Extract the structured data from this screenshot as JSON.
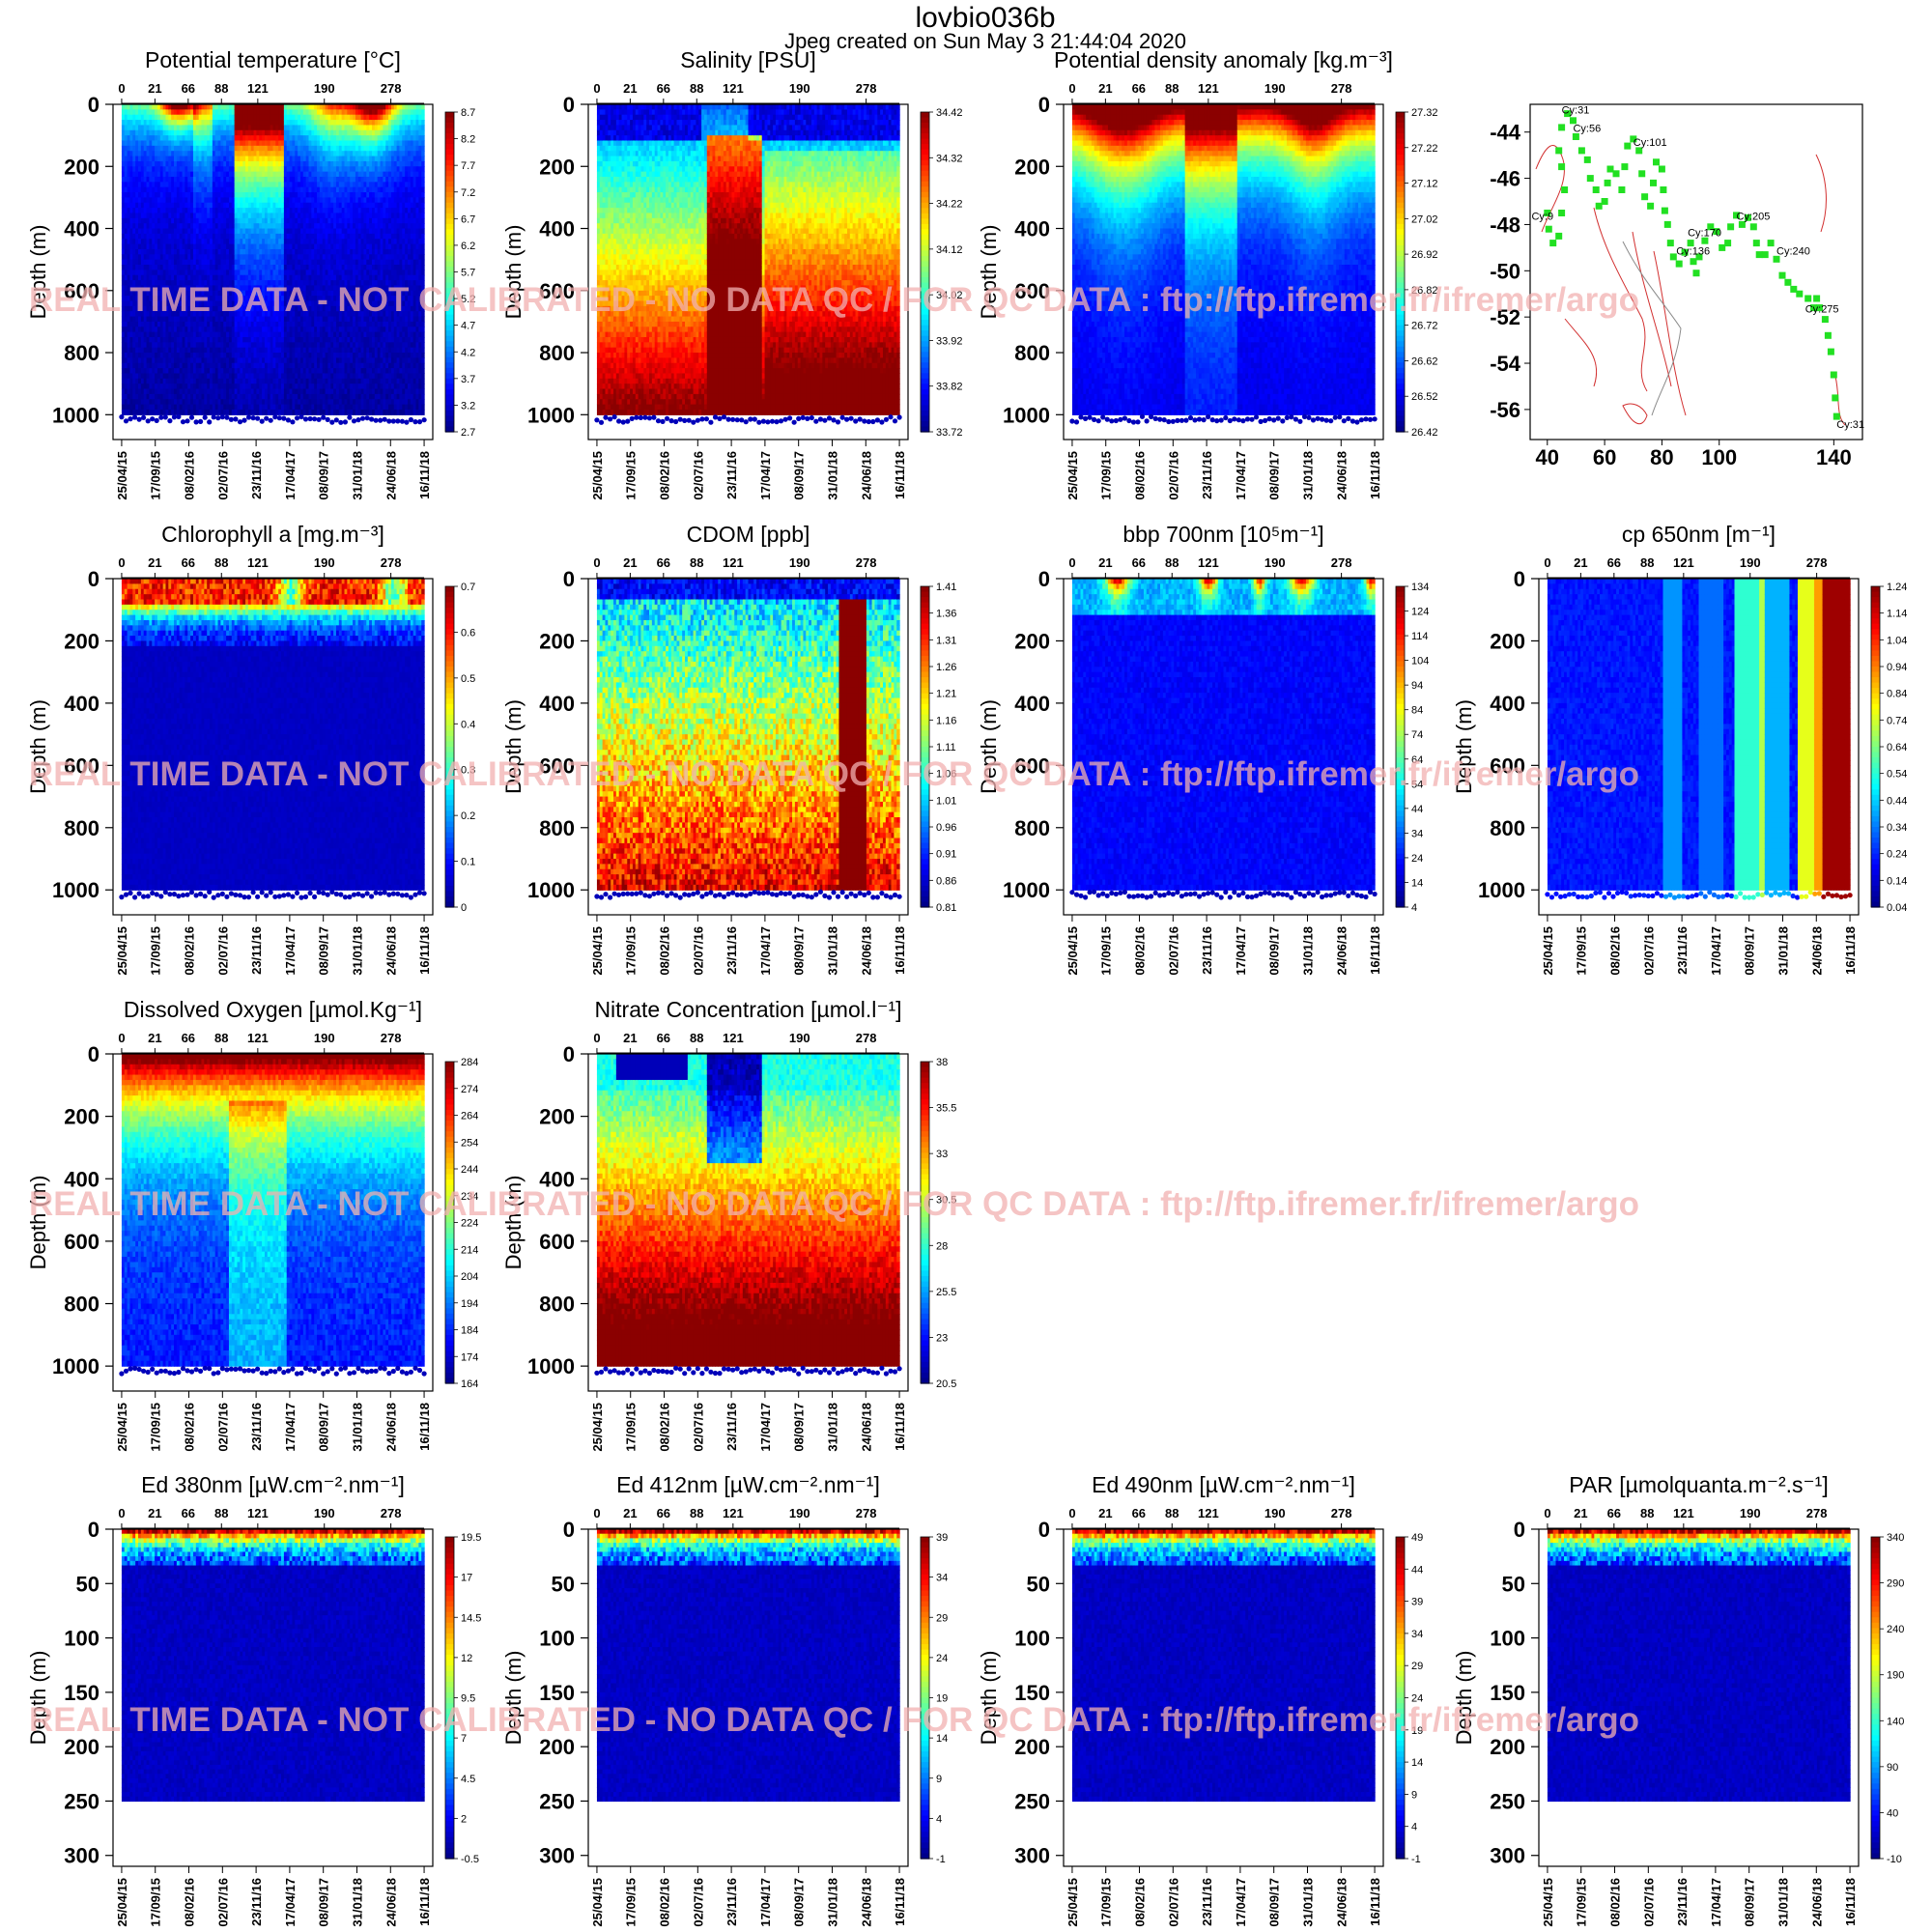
{
  "header": {
    "title": "lovbio036b",
    "subtitle": "Jpeg created on  Sun May  3 21:44:04 2020"
  },
  "watermark": "REAL TIME DATA - NOT CALIBRATED - NO DATA QC  /  FOR QC DATA : ftp://ftp.ifremer.fr/ifremer/argo",
  "colormap": [
    "#00008b",
    "#0000ff",
    "#0080ff",
    "#00ffff",
    "#80ff80",
    "#ffff00",
    "#ff8000",
    "#ff0000",
    "#8b0000"
  ],
  "chart_data": [
    {
      "type": "heatmap",
      "id": "temp",
      "title": "Potential temperature [°C]",
      "ylabel": "Depth (m)",
      "top_axis_ticks": [
        "0",
        "21",
        "66",
        "88",
        "121",
        "190",
        "278"
      ],
      "date_ticks": [
        "25/04/15",
        "17/09/15",
        "08/02/16",
        "02/07/16",
        "23/11/16",
        "17/04/17",
        "08/09/17",
        "31/01/18",
        "24/06/18",
        "16/11/18"
      ],
      "depth_ticks": [
        "0",
        "200",
        "400",
        "600",
        "800",
        "1000"
      ],
      "colorbar_ticks": [
        "8.7",
        "8.2",
        "7.7",
        "7.2",
        "6.7",
        "6.2",
        "5.7",
        "5.2",
        "4.7",
        "4.2",
        "3.7",
        "3.2",
        "2.7"
      ],
      "ylim": [
        1080,
        0
      ],
      "max_depth": 1000,
      "pattern": "temp"
    },
    {
      "type": "heatmap",
      "id": "sal",
      "title": "Salinity [PSU]",
      "ylabel": "Depth (m)",
      "top_axis_ticks": [
        "0",
        "21",
        "66",
        "88",
        "121",
        "190",
        "278"
      ],
      "date_ticks": [
        "25/04/15",
        "17/09/15",
        "08/02/16",
        "02/07/16",
        "23/11/16",
        "17/04/17",
        "08/09/17",
        "31/01/18",
        "24/06/18",
        "16/11/18"
      ],
      "depth_ticks": [
        "0",
        "200",
        "400",
        "600",
        "800",
        "1000"
      ],
      "colorbar_ticks": [
        "34.42",
        "34.32",
        "34.22",
        "34.12",
        "34.02",
        "33.92",
        "33.82",
        "33.72"
      ],
      "ylim": [
        1080,
        0
      ],
      "max_depth": 1000,
      "pattern": "sal"
    },
    {
      "type": "heatmap",
      "id": "dens",
      "title": "Potential density anomaly [kg.m⁻³]",
      "ylabel": "Depth (m)",
      "top_axis_ticks": [
        "0",
        "21",
        "66",
        "88",
        "121",
        "190",
        "278"
      ],
      "date_ticks": [
        "25/04/15",
        "17/09/15",
        "08/02/16",
        "02/07/16",
        "23/11/16",
        "17/04/17",
        "08/09/17",
        "31/01/18",
        "24/06/18",
        "16/11/18"
      ],
      "depth_ticks": [
        "0",
        "200",
        "400",
        "600",
        "800",
        "1000"
      ],
      "colorbar_ticks": [
        "27.32",
        "27.22",
        "27.12",
        "27.02",
        "26.92",
        "26.82",
        "26.72",
        "26.62",
        "26.52",
        "26.42"
      ],
      "ylim": [
        1080,
        0
      ],
      "max_depth": 1000,
      "pattern": "dens"
    },
    {
      "type": "scatter",
      "id": "map",
      "x_ticks": [
        "40",
        "60",
        "80",
        "100",
        "140"
      ],
      "y_ticks": [
        "-44",
        "-46",
        "-48",
        "-50",
        "-52",
        "-54",
        "-56"
      ],
      "xlim": [
        34,
        150
      ],
      "ylim": [
        -57.3,
        -42.8
      ],
      "cycle_labels": [
        {
          "label": "Cy:31",
          "lon": 45,
          "lat": -43.2
        },
        {
          "label": "Cy:56",
          "lon": 49,
          "lat": -44.0
        },
        {
          "label": "Cy:101",
          "lon": 70,
          "lat": -44.6
        },
        {
          "label": "Cy:9",
          "lon": 34.5,
          "lat": -47.8
        },
        {
          "label": "Cy:170",
          "lon": 89,
          "lat": -48.5
        },
        {
          "label": "Cy:205",
          "lon": 106,
          "lat": -47.8
        },
        {
          "label": "Cy:136",
          "lon": 85,
          "lat": -49.3
        },
        {
          "label": "Cy:240",
          "lon": 120,
          "lat": -49.3
        },
        {
          "label": "Cy:275",
          "lon": 130,
          "lat": -51.8
        },
        {
          "label": "Cy:31",
          "lon": 141,
          "lat": -56.8
        }
      ],
      "track": [
        [
          40,
          -47.5
        ],
        [
          40.5,
          -48.2
        ],
        [
          42,
          -48.8
        ],
        [
          44,
          -48.5
        ],
        [
          45,
          -47.5
        ],
        [
          46,
          -46.5
        ],
        [
          45,
          -45.5
        ],
        [
          44,
          -44.8
        ],
        [
          45,
          -43.8
        ],
        [
          47,
          -43.2
        ],
        [
          49,
          -43.5
        ],
        [
          50,
          -44.2
        ],
        [
          52,
          -44.8
        ],
        [
          54,
          -45.2
        ],
        [
          55,
          -46.0
        ],
        [
          57,
          -46.5
        ],
        [
          58,
          -47.2
        ],
        [
          60,
          -47.0
        ],
        [
          61,
          -46.2
        ],
        [
          62,
          -45.6
        ],
        [
          64,
          -45.8
        ],
        [
          66,
          -46.5
        ],
        [
          67,
          -45.5
        ],
        [
          68,
          -44.6
        ],
        [
          70,
          -44.3
        ],
        [
          72,
          -44.8
        ],
        [
          73,
          -45.8
        ],
        [
          74,
          -46.8
        ],
        [
          76,
          -47.2
        ],
        [
          77,
          -46.2
        ],
        [
          78,
          -45.3
        ],
        [
          80,
          -45.6
        ],
        [
          80.5,
          -46.5
        ],
        [
          81,
          -47.4
        ],
        [
          82,
          -48.0
        ],
        [
          83,
          -48.8
        ],
        [
          84,
          -49.4
        ],
        [
          86,
          -49.7
        ],
        [
          88,
          -49.2
        ],
        [
          90,
          -48.8
        ],
        [
          91,
          -49.6
        ],
        [
          92,
          -50.1
        ],
        [
          93,
          -49.4
        ],
        [
          95,
          -48.7
        ],
        [
          97,
          -48.1
        ],
        [
          99,
          -48.3
        ],
        [
          101,
          -49.0
        ],
        [
          103,
          -48.8
        ],
        [
          104,
          -48.1
        ],
        [
          106,
          -47.6
        ],
        [
          108,
          -48.0
        ],
        [
          110,
          -47.7
        ],
        [
          112,
          -48.1
        ],
        [
          113,
          -48.8
        ],
        [
          114,
          -49.3
        ],
        [
          116,
          -49.3
        ],
        [
          118,
          -48.8
        ],
        [
          120,
          -49.5
        ],
        [
          122,
          -50.2
        ],
        [
          124,
          -50.5
        ],
        [
          126,
          -50.8
        ],
        [
          128,
          -51.0
        ],
        [
          131,
          -51.2
        ],
        [
          133,
          -51.6
        ],
        [
          134,
          -51.2
        ],
        [
          135,
          -51.6
        ],
        [
          137,
          -52.1
        ],
        [
          138,
          -52.8
        ],
        [
          139,
          -53.5
        ],
        [
          140,
          -54.5
        ],
        [
          140.5,
          -55.5
        ],
        [
          141,
          -56.3
        ]
      ]
    },
    {
      "type": "heatmap",
      "id": "chl",
      "title": "Chlorophyll a [mg.m⁻³]",
      "ylabel": "Depth (m)",
      "top_axis_ticks": [
        "0",
        "21",
        "66",
        "88",
        "121",
        "190",
        "278"
      ],
      "date_ticks": [
        "25/04/15",
        "17/09/15",
        "08/02/16",
        "02/07/16",
        "23/11/16",
        "17/04/17",
        "08/09/17",
        "31/01/18",
        "24/06/18",
        "16/11/18"
      ],
      "depth_ticks": [
        "0",
        "200",
        "400",
        "600",
        "800",
        "1000"
      ],
      "colorbar_ticks": [
        "0.7",
        "0.6",
        "0.5",
        "0.4",
        "0.3",
        "0.2",
        "0.1",
        "0"
      ],
      "ylim": [
        1080,
        0
      ],
      "max_depth": 1000,
      "pattern": "chl"
    },
    {
      "type": "heatmap",
      "id": "cdom",
      "title": "CDOM  [ppb]",
      "ylabel": "Depth (m)",
      "top_axis_ticks": [
        "0",
        "21",
        "66",
        "88",
        "121",
        "190",
        "278"
      ],
      "date_ticks": [
        "25/04/15",
        "17/09/15",
        "08/02/16",
        "02/07/16",
        "23/11/16",
        "17/04/17",
        "08/09/17",
        "31/01/18",
        "24/06/18",
        "16/11/18"
      ],
      "depth_ticks": [
        "0",
        "200",
        "400",
        "600",
        "800",
        "1000"
      ],
      "colorbar_ticks": [
        "1.41",
        "1.36",
        "1.31",
        "1.26",
        "1.21",
        "1.16",
        "1.11",
        "1.06",
        "1.01",
        "0.96",
        "0.91",
        "0.86",
        "0.81"
      ],
      "ylim": [
        1080,
        0
      ],
      "max_depth": 1000,
      "pattern": "cdom"
    },
    {
      "type": "heatmap",
      "id": "bbp",
      "title": "bbp 700nm [10⁵m⁻¹]",
      "ylabel": "Depth (m)",
      "top_axis_ticks": [
        "0",
        "21",
        "66",
        "88",
        "121",
        "190",
        "278"
      ],
      "date_ticks": [
        "25/04/15",
        "17/09/15",
        "08/02/16",
        "02/07/16",
        "23/11/16",
        "17/04/17",
        "08/09/17",
        "31/01/18",
        "24/06/18",
        "16/11/18"
      ],
      "depth_ticks": [
        "0",
        "200",
        "400",
        "600",
        "800",
        "1000"
      ],
      "colorbar_ticks": [
        "134",
        "124",
        "114",
        "104",
        "94",
        "84",
        "74",
        "64",
        "54",
        "44",
        "34",
        "24",
        "14",
        "4"
      ],
      "ylim": [
        1080,
        0
      ],
      "max_depth": 1000,
      "pattern": "bbp"
    },
    {
      "type": "heatmap",
      "id": "cp",
      "title": "cp 650nm [m⁻¹]",
      "ylabel": "Depth (m)",
      "top_axis_ticks": [
        "0",
        "21",
        "66",
        "88",
        "121",
        "190",
        "278"
      ],
      "date_ticks": [
        "25/04/15",
        "17/09/15",
        "08/02/16",
        "02/07/16",
        "23/11/16",
        "17/04/17",
        "08/09/17",
        "31/01/18",
        "24/06/18",
        "16/11/18"
      ],
      "depth_ticks": [
        "0",
        "200",
        "400",
        "600",
        "800",
        "1000"
      ],
      "colorbar_ticks": [
        "1.24",
        "1.14",
        "1.04",
        "0.94",
        "0.84",
        "0.74",
        "0.64",
        "0.54",
        "0.44",
        "0.34",
        "0.24",
        "0.14",
        "0.04"
      ],
      "ylim": [
        1080,
        0
      ],
      "max_depth": 1000,
      "pattern": "cp"
    },
    {
      "type": "heatmap",
      "id": "oxy",
      "title": "Dissolved Oxygen [µmol.Kg⁻¹]",
      "ylabel": "Depth (m)",
      "top_axis_ticks": [
        "0",
        "21",
        "66",
        "88",
        "121",
        "190",
        "278"
      ],
      "date_ticks": [
        "25/04/15",
        "17/09/15",
        "08/02/16",
        "02/07/16",
        "23/11/16",
        "17/04/17",
        "08/09/17",
        "31/01/18",
        "24/06/18",
        "16/11/18"
      ],
      "depth_ticks": [
        "0",
        "200",
        "400",
        "600",
        "800",
        "1000"
      ],
      "colorbar_ticks": [
        "284",
        "274",
        "264",
        "254",
        "244",
        "234",
        "224",
        "214",
        "204",
        "194",
        "184",
        "174",
        "164"
      ],
      "ylim": [
        1080,
        0
      ],
      "max_depth": 1000,
      "pattern": "oxy"
    },
    {
      "type": "heatmap",
      "id": "nitrate",
      "title": "Nitrate Concentration [µmol.l⁻¹]",
      "ylabel": "Depth (m)",
      "top_axis_ticks": [
        "0",
        "21",
        "66",
        "88",
        "121",
        "190",
        "278"
      ],
      "date_ticks": [
        "25/04/15",
        "17/09/15",
        "08/02/16",
        "02/07/16",
        "23/11/16",
        "17/04/17",
        "08/09/17",
        "31/01/18",
        "24/06/18",
        "16/11/18"
      ],
      "depth_ticks": [
        "0",
        "200",
        "400",
        "600",
        "800",
        "1000"
      ],
      "colorbar_ticks": [
        "38",
        "35.5",
        "33",
        "30.5",
        "28",
        "25.5",
        "23",
        "20.5"
      ],
      "ylim": [
        1080,
        0
      ],
      "max_depth": 1000,
      "pattern": "nitrate"
    },
    {
      "type": "heatmap",
      "id": "ed380",
      "title": "Ed 380nm [µW.cm⁻².nm⁻¹]",
      "ylabel": "Depth (m)",
      "top_axis_ticks": [
        "0",
        "21",
        "66",
        "88",
        "121",
        "190",
        "278"
      ],
      "date_ticks": [
        "25/04/15",
        "17/09/15",
        "08/02/16",
        "02/07/16",
        "23/11/16",
        "17/04/17",
        "08/09/17",
        "31/01/18",
        "24/06/18",
        "16/11/18"
      ],
      "depth_ticks": [
        "0",
        "50",
        "100",
        "150",
        "200",
        "250",
        "300"
      ],
      "colorbar_ticks": [
        "19.5",
        "17",
        "14.5",
        "12",
        "9.5",
        "7",
        "4.5",
        "2",
        "-0.5"
      ],
      "ylim": [
        310,
        0
      ],
      "max_depth": 250,
      "pattern": "light"
    },
    {
      "type": "heatmap",
      "id": "ed412",
      "title": "Ed 412nm [µW.cm⁻².nm⁻¹]",
      "ylabel": "Depth (m)",
      "top_axis_ticks": [
        "0",
        "21",
        "66",
        "88",
        "121",
        "190",
        "278"
      ],
      "date_ticks": [
        "25/04/15",
        "17/09/15",
        "08/02/16",
        "02/07/16",
        "23/11/16",
        "17/04/17",
        "08/09/17",
        "31/01/18",
        "24/06/18",
        "16/11/18"
      ],
      "depth_ticks": [
        "0",
        "50",
        "100",
        "150",
        "200",
        "250",
        "300"
      ],
      "colorbar_ticks": [
        "39",
        "34",
        "29",
        "24",
        "19",
        "14",
        "9",
        "4",
        "-1"
      ],
      "ylim": [
        310,
        0
      ],
      "max_depth": 250,
      "pattern": "light"
    },
    {
      "type": "heatmap",
      "id": "ed490",
      "title": "Ed 490nm [µW.cm⁻².nm⁻¹]",
      "ylabel": "Depth (m)",
      "top_axis_ticks": [
        "0",
        "21",
        "66",
        "88",
        "121",
        "190",
        "278"
      ],
      "date_ticks": [
        "25/04/15",
        "17/09/15",
        "08/02/16",
        "02/07/16",
        "23/11/16",
        "17/04/17",
        "08/09/17",
        "31/01/18",
        "24/06/18",
        "16/11/18"
      ],
      "depth_ticks": [
        "0",
        "50",
        "100",
        "150",
        "200",
        "250",
        "300"
      ],
      "colorbar_ticks": [
        "49",
        "44",
        "39",
        "34",
        "29",
        "24",
        "19",
        "14",
        "9",
        "4",
        "-1"
      ],
      "ylim": [
        310,
        0
      ],
      "max_depth": 250,
      "pattern": "light"
    },
    {
      "type": "heatmap",
      "id": "par",
      "title": "PAR [µmolquanta.m⁻².s⁻¹]",
      "ylabel": "Depth (m)",
      "top_axis_ticks": [
        "0",
        "21",
        "66",
        "88",
        "121",
        "190",
        "278"
      ],
      "date_ticks": [
        "25/04/15",
        "17/09/15",
        "08/02/16",
        "02/07/16",
        "23/11/16",
        "17/04/17",
        "08/09/17",
        "31/01/18",
        "24/06/18",
        "16/11/18"
      ],
      "depth_ticks": [
        "0",
        "50",
        "100",
        "150",
        "200",
        "250",
        "300"
      ],
      "colorbar_ticks": [
        "340",
        "290",
        "240",
        "190",
        "140",
        "90",
        "40",
        "-10"
      ],
      "ylim": [
        310,
        0
      ],
      "max_depth": 250,
      "pattern": "light"
    }
  ]
}
